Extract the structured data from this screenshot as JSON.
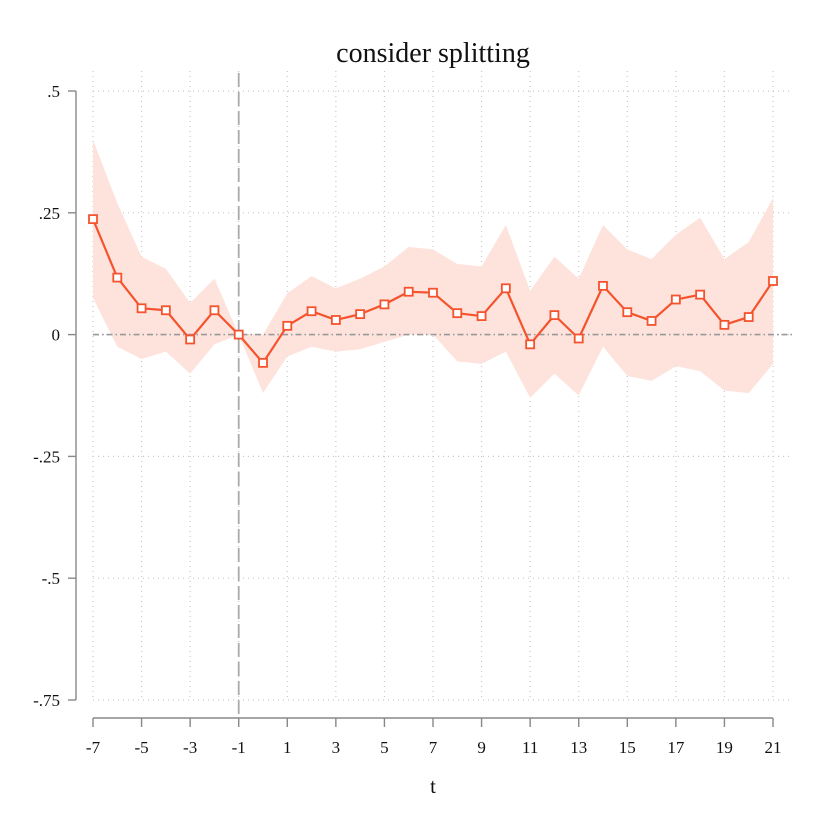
{
  "chart_data": {
    "type": "line",
    "title": "consider splitting",
    "xlabel": "t",
    "ylabel": "",
    "xlim": [
      -7,
      21
    ],
    "ylim": [
      -0.75,
      0.5
    ],
    "x_ticks": [
      -7,
      -5,
      -3,
      -1,
      1,
      3,
      5,
      7,
      9,
      11,
      13,
      15,
      17,
      19,
      21
    ],
    "x_tick_labels": [
      "-7",
      "-5",
      "-3",
      "-1",
      "1",
      "3",
      "5",
      "7",
      "9",
      "11",
      "13",
      "15",
      "17",
      "19",
      "21"
    ],
    "y_ticks": [
      0.5,
      0.25,
      0,
      -0.25,
      -0.5,
      -0.75
    ],
    "y_tick_labels": [
      ".5",
      ".25",
      "0",
      "-.25",
      "-.5",
      "-.75"
    ],
    "grid": true,
    "reference_lines": {
      "x": -1,
      "y": 0
    },
    "x": [
      -7,
      -6,
      -5,
      -4,
      -3,
      -2,
      -1,
      0,
      1,
      2,
      3,
      4,
      5,
      6,
      7,
      8,
      9,
      10,
      11,
      12,
      13,
      14,
      15,
      16,
      17,
      18,
      19,
      20,
      21
    ],
    "series": [
      {
        "values": [
          0.237,
          0.117,
          0.054,
          0.05,
          -0.01,
          0.05,
          0.0,
          -0.058,
          0.018,
          0.048,
          0.03,
          0.042,
          0.062,
          0.088,
          0.086,
          0.044,
          0.038,
          0.095,
          -0.02,
          0.04,
          -0.008,
          0.1,
          0.046,
          0.028,
          0.072,
          0.082,
          0.02,
          0.036,
          0.11
        ],
        "ci_upper": [
          0.4,
          0.27,
          0.16,
          0.135,
          0.065,
          0.115,
          0.0,
          0.0,
          0.085,
          0.12,
          0.095,
          0.115,
          0.14,
          0.18,
          0.175,
          0.145,
          0.14,
          0.225,
          0.09,
          0.16,
          0.115,
          0.225,
          0.175,
          0.155,
          0.205,
          0.24,
          0.155,
          0.19,
          0.28
        ],
        "ci_lower": [
          0.075,
          -0.025,
          -0.05,
          -0.035,
          -0.08,
          -0.02,
          0.0,
          -0.12,
          -0.045,
          -0.025,
          -0.035,
          -0.03,
          -0.015,
          0.0,
          0.0,
          -0.055,
          -0.06,
          -0.035,
          -0.13,
          -0.08,
          -0.125,
          -0.025,
          -0.085,
          -0.095,
          -0.065,
          -0.075,
          -0.115,
          -0.12,
          -0.06
        ]
      }
    ],
    "colors": {
      "line": "#f5532d",
      "ci_fill": "#fee3dd",
      "grid": "#c8c8c8",
      "axis": "#888888",
      "reference": "#999999",
      "text": "#111111"
    }
  }
}
